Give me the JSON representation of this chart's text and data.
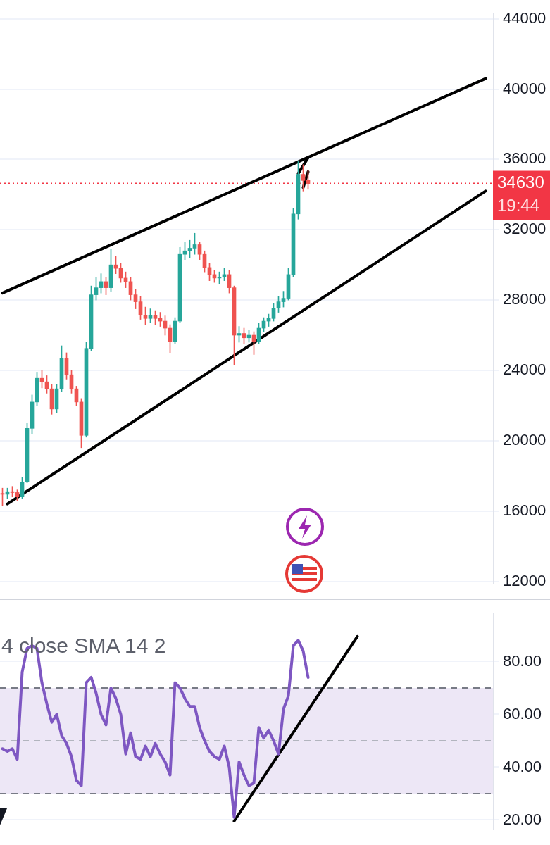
{
  "chart_data": [
    {
      "type": "candlestick",
      "categories": [
        null,
        null,
        null,
        null,
        null,
        null,
        null,
        null,
        null,
        null,
        null,
        null,
        null,
        null,
        null,
        null,
        null,
        null,
        null,
        null,
        null,
        null,
        null,
        null,
        null,
        null,
        null,
        null,
        null,
        null,
        null,
        null,
        null,
        null,
        null,
        null,
        null,
        null,
        null,
        null,
        null,
        null,
        null,
        null,
        null,
        null,
        null,
        null,
        null,
        null,
        null,
        null,
        null,
        null,
        null,
        null,
        null,
        null,
        null,
        null,
        null,
        null,
        null,
        null,
        null,
        null,
        null,
        null,
        null,
        null,
        null,
        null,
        null,
        null,
        null,
        null,
        null,
        null,
        null,
        null,
        null,
        null,
        null,
        null,
        null,
        null,
        null,
        null,
        null,
        null,
        null,
        null,
        null,
        null,
        null,
        null,
        null,
        null,
        null,
        null
      ],
      "ohlc": [
        [
          17000,
          17300,
          16300,
          16950
        ],
        [
          16950,
          17300,
          16700,
          17100
        ],
        [
          17100,
          17400,
          16800,
          17050
        ],
        [
          17050,
          17200,
          16600,
          16800
        ],
        [
          16800,
          17900,
          16700,
          17650
        ],
        [
          17650,
          21000,
          17600,
          20700
        ],
        [
          20700,
          22600,
          20400,
          22200
        ],
        [
          22200,
          23900,
          22000,
          23550
        ],
        [
          23550,
          24000,
          23000,
          23350
        ],
        [
          23350,
          23700,
          22700,
          22950
        ],
        [
          22950,
          23200,
          21500,
          21800
        ],
        [
          21800,
          23200,
          21600,
          22950
        ],
        [
          22950,
          25400,
          22800,
          24700
        ],
        [
          24700,
          25000,
          23500,
          23750
        ],
        [
          23750,
          24000,
          22700,
          22950
        ],
        [
          22950,
          23100,
          22000,
          22200
        ],
        [
          22200,
          22400,
          19600,
          20300
        ],
        [
          20300,
          25600,
          20200,
          25250
        ],
        [
          25250,
          28800,
          25100,
          28300
        ],
        [
          28300,
          29300,
          28000,
          28700
        ],
        [
          28700,
          29500,
          28400,
          29050
        ],
        [
          29050,
          29300,
          28300,
          28700
        ],
        [
          28700,
          30900,
          28500,
          30000
        ],
        [
          30000,
          30500,
          29500,
          29800
        ],
        [
          29800,
          30100,
          29000,
          29250
        ],
        [
          29250,
          29600,
          28700,
          29050
        ],
        [
          29050,
          29300,
          28000,
          28300
        ],
        [
          28300,
          28600,
          27500,
          27900
        ],
        [
          27900,
          28200,
          26900,
          27150
        ],
        [
          27150,
          27600,
          26600,
          26950
        ],
        [
          26950,
          27500,
          26700,
          27150
        ],
        [
          27150,
          27400,
          26600,
          26950
        ],
        [
          26950,
          27300,
          26500,
          26800
        ],
        [
          26800,
          27100,
          26000,
          26400
        ],
        [
          26400,
          26600,
          25000,
          25650
        ],
        [
          25650,
          27000,
          25500,
          26800
        ],
        [
          26800,
          31000,
          26700,
          30600
        ],
        [
          30600,
          31300,
          30300,
          30800
        ],
        [
          30800,
          31400,
          30400,
          30950
        ],
        [
          30950,
          31800,
          30600,
          31150
        ],
        [
          31150,
          31300,
          30300,
          30600
        ],
        [
          30600,
          30800,
          29600,
          29850
        ],
        [
          29850,
          30100,
          29100,
          29450
        ],
        [
          29450,
          29700,
          29000,
          29250
        ],
        [
          29250,
          29600,
          28900,
          29300
        ],
        [
          29300,
          29800,
          29100,
          29450
        ],
        [
          29450,
          29700,
          28400,
          28700
        ],
        [
          28700,
          28800,
          24300,
          26000
        ],
        [
          26000,
          26500,
          25600,
          26100
        ],
        [
          26100,
          26400,
          25500,
          25850
        ],
        [
          25850,
          26300,
          25600,
          26000
        ],
        [
          26000,
          26200,
          24900,
          25650
        ],
        [
          25650,
          26700,
          25500,
          26400
        ],
        [
          26400,
          27000,
          26200,
          26800
        ],
        [
          26800,
          27200,
          26500,
          26950
        ],
        [
          26950,
          27800,
          26800,
          27550
        ],
        [
          27550,
          28200,
          27300,
          27900
        ],
        [
          27900,
          28500,
          27600,
          28100
        ],
        [
          28100,
          29800,
          28000,
          29450
        ],
        [
          29450,
          33200,
          29300,
          32900
        ],
        [
          32900,
          35900,
          32600,
          35150
        ],
        [
          35150,
          35700,
          34200,
          34800
        ],
        [
          34800,
          35400,
          34300,
          34630
        ],
        null,
        null,
        null,
        null,
        null,
        null,
        null,
        null,
        null,
        null,
        null,
        null,
        null,
        null,
        null,
        null,
        null,
        null,
        null,
        null,
        null,
        null,
        null,
        null,
        null,
        null,
        null,
        null,
        null,
        null,
        null,
        null,
        null,
        null,
        null,
        null,
        null
      ],
      "colors": [
        "#ef5350",
        "#26a69a",
        "#ef5350",
        "#ef5350",
        "#26a69a",
        "#26a69a",
        "#26a69a",
        "#26a69a",
        "#ef5350",
        "#ef5350",
        "#ef5350",
        "#26a69a",
        "#26a69a",
        "#ef5350",
        "#ef5350",
        "#ef5350",
        "#ef5350",
        "#26a69a",
        "#26a69a",
        "#26a69a",
        "#26a69a",
        "#ef5350",
        "#26a69a",
        "#ef5350",
        "#ef5350",
        "#ef5350",
        "#ef5350",
        "#ef5350",
        "#ef5350",
        "#ef5350",
        "#26a69a",
        "#ef5350",
        "#ef5350",
        "#ef5350",
        "#ef5350",
        "#26a69a",
        "#26a69a",
        "#26a69a",
        "#26a69a",
        "#26a69a",
        "#ef5350",
        "#ef5350",
        "#ef5350",
        "#ef5350",
        "#26a69a",
        "#26a69a",
        "#ef5350",
        "#ef5350",
        "#26a69a",
        "#ef5350",
        "#26a69a",
        "#ef5350",
        "#26a69a",
        "#26a69a",
        "#26a69a",
        "#26a69a",
        "#26a69a",
        "#26a69a",
        "#26a69a",
        "#26a69a",
        "#26a69a",
        "#ef5350",
        "#ef5350",
        null,
        null,
        null,
        null,
        null,
        null,
        null,
        null,
        null,
        null,
        null,
        null,
        null,
        null,
        null,
        null,
        null,
        null,
        null,
        null,
        null,
        null,
        null,
        null,
        null,
        null,
        null,
        null,
        null,
        null,
        null,
        null,
        null,
        null,
        null,
        null,
        null
      ],
      "series": [
        {
          "type": "line",
          "color": "#000000",
          "values": [
            28400,
            null,
            null,
            null,
            null,
            null,
            null,
            null,
            null,
            null,
            null,
            null,
            null,
            null,
            null,
            null,
            null,
            null,
            null,
            null,
            null,
            null,
            null,
            null,
            null,
            null,
            null,
            null,
            null,
            null,
            null,
            null,
            null,
            null,
            null,
            null,
            null,
            null,
            null,
            null,
            null,
            null,
            null,
            null,
            null,
            null,
            null,
            null,
            null,
            null,
            null,
            null,
            null,
            null,
            null,
            null,
            null,
            null,
            null,
            null,
            null,
            null,
            null,
            null,
            null,
            null,
            null,
            null,
            null,
            null,
            null,
            null,
            null,
            null,
            null,
            null,
            null,
            null,
            null,
            null,
            null,
            null,
            null,
            null,
            null,
            null,
            null,
            null,
            null,
            null,
            null,
            null,
            null,
            null,
            null,
            null,
            null,
            null,
            40600,
            null
          ]
        },
        {
          "type": "line",
          "color": "#000000",
          "values": [
            null,
            16400,
            null,
            null,
            null,
            null,
            null,
            null,
            null,
            null,
            null,
            null,
            null,
            null,
            null,
            null,
            null,
            null,
            null,
            null,
            null,
            null,
            null,
            null,
            null,
            null,
            null,
            null,
            null,
            null,
            null,
            null,
            null,
            null,
            null,
            null,
            null,
            null,
            null,
            null,
            null,
            null,
            null,
            null,
            null,
            null,
            null,
            null,
            null,
            null,
            null,
            null,
            null,
            null,
            null,
            null,
            null,
            null,
            null,
            null,
            null,
            null,
            null,
            null,
            null,
            null,
            null,
            null,
            null,
            null,
            null,
            null,
            null,
            null,
            null,
            null,
            null,
            null,
            null,
            null,
            null,
            null,
            null,
            null,
            null,
            null,
            null,
            null,
            null,
            null,
            null,
            null,
            null,
            null,
            null,
            null,
            null,
            null,
            34200,
            null
          ]
        },
        {
          "type": "line",
          "color": "#000000",
          "values": [
            null,
            null,
            null,
            null,
            null,
            null,
            null,
            null,
            null,
            null,
            null,
            null,
            null,
            null,
            null,
            null,
            null,
            null,
            null,
            null,
            null,
            null,
            null,
            null,
            null,
            null,
            null,
            null,
            null,
            null,
            null,
            null,
            null,
            null,
            null,
            null,
            null,
            null,
            null,
            null,
            null,
            null,
            null,
            null,
            null,
            null,
            null,
            null,
            null,
            null,
            null,
            null,
            null,
            null,
            null,
            null,
            null,
            null,
            null,
            null,
            35200,
            null,
            36100,
            null,
            null,
            null,
            null,
            null,
            null,
            null,
            null,
            null,
            null,
            null,
            null,
            null,
            null,
            null,
            null,
            null,
            null,
            null,
            null,
            null,
            null,
            null,
            null,
            null,
            null,
            null,
            null,
            null,
            null,
            null,
            null,
            null,
            null,
            null,
            null,
            null
          ]
        },
        {
          "type": "line",
          "color": "#000000",
          "values": [
            null,
            null,
            null,
            null,
            null,
            null,
            null,
            null,
            null,
            null,
            null,
            null,
            null,
            null,
            null,
            null,
            null,
            null,
            null,
            null,
            null,
            null,
            null,
            null,
            null,
            null,
            null,
            null,
            null,
            null,
            null,
            null,
            null,
            null,
            null,
            null,
            null,
            null,
            null,
            null,
            null,
            null,
            null,
            null,
            null,
            null,
            null,
            null,
            null,
            null,
            null,
            null,
            null,
            null,
            null,
            null,
            null,
            null,
            null,
            null,
            null,
            34400,
            35300,
            null,
            null,
            null,
            null,
            null,
            null,
            null,
            null,
            null,
            null,
            null,
            null,
            null,
            null,
            null,
            null,
            null,
            null,
            null,
            null,
            null,
            null,
            null,
            null,
            null,
            null,
            null,
            null,
            null,
            null,
            null,
            null,
            null,
            null,
            null,
            null,
            null
          ]
        }
      ],
      "ylim": [
        11900,
        44300
      ],
      "yticks": [
        12000,
        16000,
        20000,
        24000,
        28000,
        32000,
        36000,
        40000,
        44000
      ],
      "ref_lines": [
        {
          "axis": "y",
          "value": 34630,
          "label": "34630",
          "color": "#f23645",
          "line_style": "dotted"
        }
      ],
      "annotations": [
        "19:44"
      ],
      "grid": "y",
      "legend": false,
      "tick_labels": "y",
      "marker": "none"
    },
    {
      "type": "line",
      "title": "4 close SMA 14 2",
      "categories": [
        null,
        null,
        null,
        null,
        null,
        null,
        null,
        null,
        null,
        null,
        null,
        null,
        null,
        null,
        null,
        null,
        null,
        null,
        null,
        null,
        null,
        null,
        null,
        null,
        null,
        null,
        null,
        null,
        null,
        null,
        null,
        null,
        null,
        null,
        null,
        null,
        null,
        null,
        null,
        null,
        null,
        null,
        null,
        null,
        null,
        null,
        null,
        null,
        null,
        null,
        null,
        null,
        null,
        null,
        null,
        null,
        null,
        null,
        null,
        null,
        null,
        null,
        null,
        null,
        null,
        null,
        null,
        null,
        null,
        null,
        null,
        null,
        null,
        null,
        null,
        null,
        null,
        null,
        null,
        null,
        null,
        null,
        null,
        null,
        null,
        null,
        null,
        null,
        null,
        null,
        null,
        null,
        null,
        null,
        null,
        null,
        null,
        null,
        null,
        null
      ],
      "series": [
        {
          "color": "#7e57c2",
          "values": [
            47,
            46,
            47,
            43,
            76,
            85,
            86,
            85,
            72,
            64,
            57,
            60,
            52,
            49,
            44,
            35,
            33,
            72,
            74,
            68,
            60,
            56,
            70,
            66,
            60,
            45,
            53,
            44,
            43,
            48,
            44,
            49,
            45,
            42,
            37,
            72,
            70,
            66,
            63,
            63,
            55,
            50,
            46,
            44,
            43,
            48,
            40,
            21,
            42,
            37,
            33,
            34,
            55,
            51,
            54,
            50,
            45,
            62,
            67,
            86,
            88,
            84,
            74,
            null,
            null,
            null,
            null,
            null,
            null,
            null,
            null,
            null,
            null,
            null,
            null,
            null,
            null,
            null,
            null,
            null,
            null,
            null,
            null,
            null,
            null,
            null,
            null,
            null,
            null,
            null,
            null,
            null,
            null,
            null,
            null,
            null,
            null,
            null,
            null,
            null
          ]
        },
        {
          "type": "line",
          "color": "#000000",
          "values": [
            null,
            null,
            null,
            null,
            null,
            null,
            null,
            null,
            null,
            null,
            null,
            null,
            null,
            null,
            null,
            null,
            null,
            null,
            null,
            null,
            null,
            null,
            null,
            null,
            null,
            null,
            null,
            null,
            null,
            null,
            null,
            null,
            null,
            null,
            null,
            null,
            null,
            null,
            null,
            null,
            null,
            null,
            null,
            null,
            null,
            null,
            null,
            19.6,
            null,
            null,
            null,
            null,
            null,
            null,
            null,
            null,
            null,
            null,
            null,
            null,
            null,
            null,
            null,
            null,
            null,
            null,
            null,
            null,
            null,
            null,
            null,
            null,
            89.5,
            null,
            null,
            null,
            null,
            null,
            null,
            null,
            null,
            null,
            null,
            null,
            null,
            null,
            null,
            null,
            null,
            null,
            null,
            null,
            null,
            null,
            null,
            null,
            null,
            null,
            null,
            null
          ]
        }
      ],
      "ylim": [
        16.4,
        98.2
      ],
      "yticks": [
        {
          "value": 20,
          "label": "20.00"
        },
        {
          "value": 40,
          "label": "40.00"
        },
        {
          "value": 60,
          "label": "60.00"
        },
        {
          "value": 80,
          "label": "80.00"
        }
      ],
      "bands": [
        {
          "axis": "y",
          "from": 30,
          "to": 70,
          "color": "#ede7f6"
        }
      ],
      "ref_lines": [
        {
          "axis": "y",
          "value": 70,
          "color": "#787b86",
          "line_style": "dashed"
        },
        {
          "axis": "y",
          "value": 50,
          "color": "#b2b5be",
          "line_style": "dashed"
        },
        {
          "axis": "y",
          "value": 30,
          "color": "#787b86",
          "line_style": "dashed"
        }
      ],
      "grid": "y",
      "legend": false,
      "tick_labels": "y",
      "marker": "none"
    }
  ]
}
